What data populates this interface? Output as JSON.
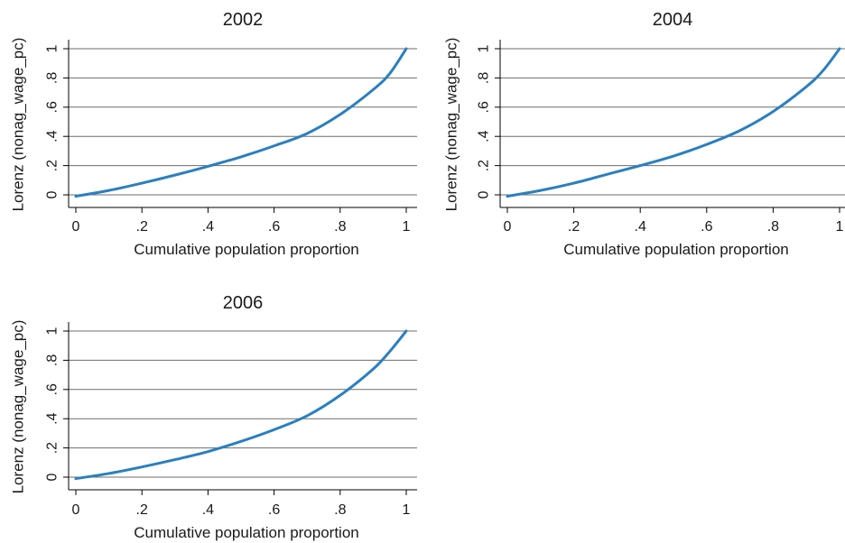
{
  "chart_data": [
    {
      "type": "line",
      "title": "2002",
      "xlabel": "Cumulative population proportion",
      "ylabel": "Lorenz (nonag_wage_pc)",
      "xlim": [
        0,
        1
      ],
      "ylim": [
        0,
        1
      ],
      "xticks": [
        0,
        0.2,
        0.4,
        0.6,
        0.8,
        1
      ],
      "xtick_labels": [
        "0",
        ".2",
        ".4",
        ".6",
        ".8",
        "1"
      ],
      "yticks": [
        0,
        0.2,
        0.4,
        0.6,
        0.8,
        1
      ],
      "ytick_labels": [
        "0",
        ".2",
        ".4",
        ".6",
        ".8",
        "1"
      ],
      "grid": true,
      "line_color": "#2a7fc0",
      "series": [
        {
          "x": [
            0,
            0.1,
            0.2,
            0.3,
            0.4,
            0.5,
            0.6,
            0.7,
            0.8,
            0.9,
            0.95,
            1
          ],
          "y": [
            -0.01,
            0.03,
            0.08,
            0.135,
            0.195,
            0.26,
            0.335,
            0.42,
            0.55,
            0.72,
            0.83,
            1
          ]
        }
      ]
    },
    {
      "type": "line",
      "title": "2004",
      "xlabel": "Cumulative population proportion",
      "ylabel": "Lorenz (nonag_wage_pc)",
      "xlim": [
        0,
        1
      ],
      "ylim": [
        0,
        1
      ],
      "xticks": [
        0,
        0.2,
        0.4,
        0.6,
        0.8,
        1
      ],
      "xtick_labels": [
        "0",
        ".2",
        ".4",
        ".6",
        ".8",
        "1"
      ],
      "yticks": [
        0,
        0.2,
        0.4,
        0.6,
        0.8,
        1
      ],
      "ytick_labels": [
        "0",
        ".2",
        ".4",
        ".6",
        ".8",
        "1"
      ],
      "grid": true,
      "line_color": "#2a7fc0",
      "series": [
        {
          "x": [
            0,
            0.1,
            0.2,
            0.3,
            0.4,
            0.5,
            0.6,
            0.7,
            0.8,
            0.9,
            0.95,
            1
          ],
          "y": [
            -0.01,
            0.03,
            0.08,
            0.14,
            0.2,
            0.265,
            0.345,
            0.44,
            0.57,
            0.74,
            0.85,
            1
          ]
        }
      ]
    },
    {
      "type": "line",
      "title": "2006",
      "xlabel": "Cumulative population proportion",
      "ylabel": "Lorenz (nonag_wage_pc)",
      "xlim": [
        0,
        1
      ],
      "ylim": [
        0,
        1
      ],
      "xticks": [
        0,
        0.2,
        0.4,
        0.6,
        0.8,
        1
      ],
      "xtick_labels": [
        "0",
        ".2",
        ".4",
        ".6",
        ".8",
        "1"
      ],
      "yticks": [
        0,
        0.2,
        0.4,
        0.6,
        0.8,
        1
      ],
      "ytick_labels": [
        "0",
        ".2",
        ".4",
        ".6",
        ".8",
        "1"
      ],
      "grid": true,
      "line_color": "#2a7fc0",
      "series": [
        {
          "x": [
            0,
            0.1,
            0.2,
            0.3,
            0.4,
            0.5,
            0.6,
            0.7,
            0.8,
            0.9,
            0.95,
            1
          ],
          "y": [
            -0.01,
            0.025,
            0.07,
            0.12,
            0.175,
            0.245,
            0.325,
            0.42,
            0.56,
            0.74,
            0.86,
            1
          ]
        }
      ]
    }
  ]
}
